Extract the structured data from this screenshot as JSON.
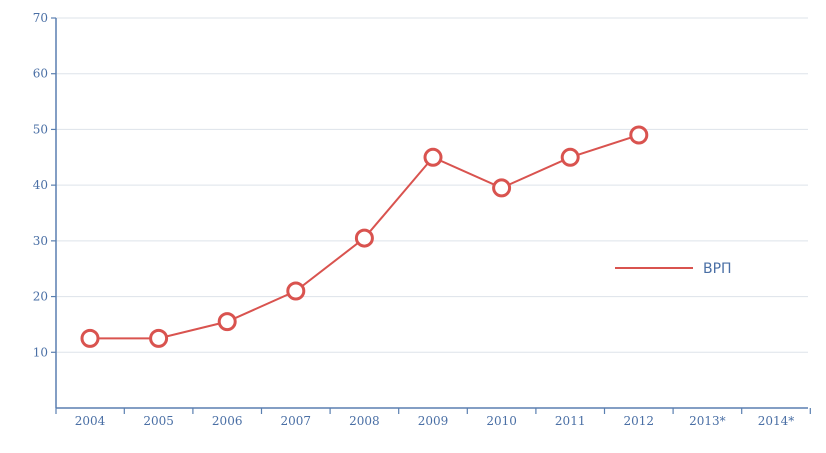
{
  "chart_data": {
    "type": "line",
    "categories": [
      "2004",
      "2005",
      "2006",
      "2007",
      "2008",
      "2009",
      "2010",
      "2011",
      "2012",
      "2013*",
      "2014*"
    ],
    "series": [
      {
        "name": "ВРП",
        "values": [
          12.5,
          12.5,
          15.5,
          21,
          30.5,
          45,
          39.5,
          45,
          49,
          null,
          null
        ],
        "color": "#d9534f"
      }
    ],
    "yticks": [
      "10",
      "20",
      "30",
      "40",
      "50",
      "60",
      "70"
    ],
    "ylim": [
      0,
      70
    ],
    "grid": true,
    "legend": {
      "placement": "right",
      "label": "ВРП"
    },
    "colors": {
      "axis": "#5a7fb0",
      "text": "#4a6fa5",
      "grid": "#dde3ea",
      "line": "#d9534f"
    }
  }
}
